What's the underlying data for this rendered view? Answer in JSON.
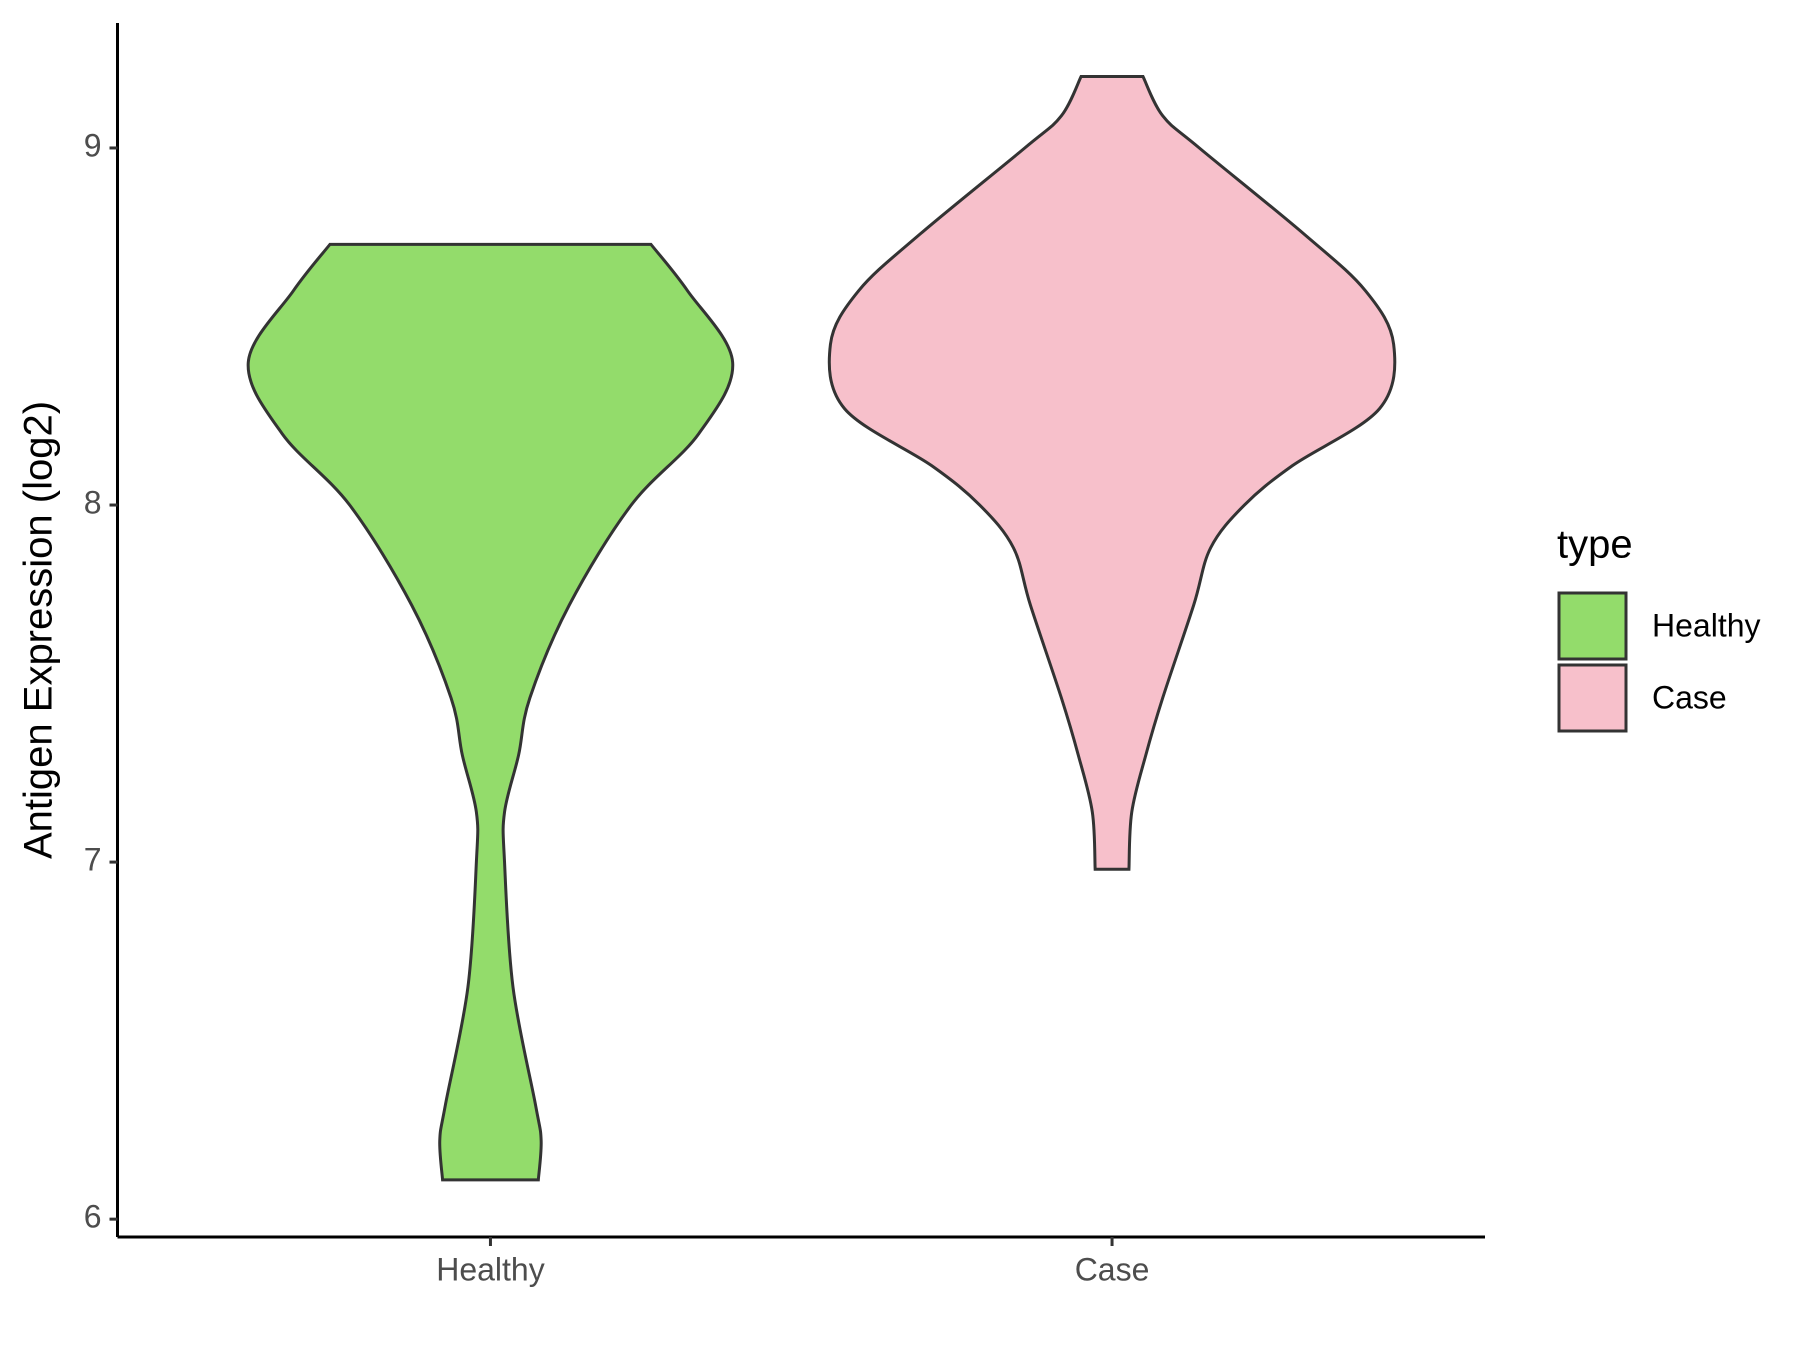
{
  "chart_data": {
    "type": "violin",
    "y_label": "Antigen Expression (log2)",
    "categories": [
      "Healthy",
      "Case"
    ],
    "ylim": [
      5.95,
      9.35
    ],
    "yticks": [
      6,
      7,
      8,
      9
    ],
    "legend_title": "type",
    "legend": "right",
    "series": [
      {
        "name": "Healthy",
        "color": "#93dc6b",
        "y": [
          6.11,
          6.22,
          6.32,
          6.65,
          7.0,
          7.14,
          7.3,
          7.46,
          7.72,
          8.0,
          8.2,
          8.4,
          8.6,
          8.73
        ],
        "density": [
          0.17,
          0.18,
          0.16,
          0.08,
          0.05,
          0.05,
          0.1,
          0.14,
          0.28,
          0.5,
          0.74,
          0.86,
          0.7,
          0.57
        ]
      },
      {
        "name": "Case",
        "color": "#f7c0cb",
        "y": [
          6.98,
          7.14,
          7.3,
          7.46,
          7.72,
          7.88,
          8.0,
          8.11,
          8.27,
          8.45,
          8.6,
          8.76,
          9.0,
          9.09,
          9.2
        ],
        "density": [
          0.06,
          0.07,
          0.12,
          0.18,
          0.29,
          0.35,
          0.47,
          0.64,
          0.95,
          1.0,
          0.9,
          0.68,
          0.31,
          0.18,
          0.11
        ]
      }
    ]
  }
}
